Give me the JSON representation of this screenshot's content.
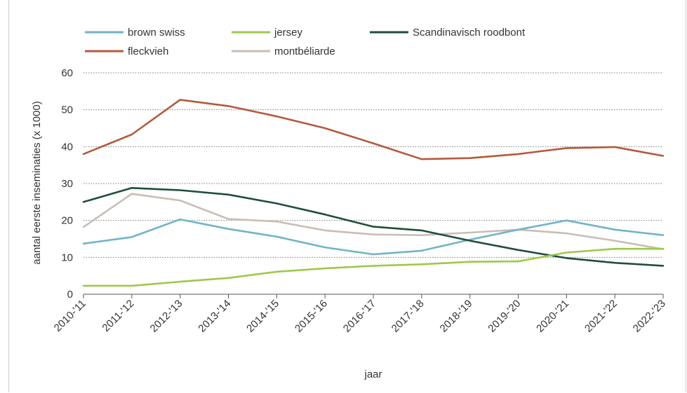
{
  "chart_data": {
    "type": "line",
    "title": "",
    "xlabel": "jaar",
    "ylabel": "aantal eerste inseminaties (x 1000)",
    "ylim": [
      0,
      60
    ],
    "yticks": [
      0,
      10,
      20,
      30,
      40,
      50,
      60
    ],
    "grid": "horizontal dotted",
    "legend_position": "top",
    "categories": [
      "2010-'11",
      "2011-'12",
      "2012-'13",
      "2013-'14",
      "2014-'15",
      "2015-'16",
      "2016-'17",
      "2017-'18",
      "2018-'19",
      "2019-'20",
      "2020-'21",
      "2021-'22",
      "2022-'23"
    ],
    "series": [
      {
        "name": "brown swiss",
        "color": "#72b3c9",
        "values": [
          13.7,
          15.5,
          20.3,
          17.7,
          15.6,
          12.7,
          10.8,
          11.8,
          14.8,
          17.5,
          20.0,
          17.5,
          16.0
        ]
      },
      {
        "name": "jersey",
        "color": "#9cc94a",
        "values": [
          2.3,
          2.3,
          3.4,
          4.4,
          6.1,
          7.0,
          7.7,
          8.1,
          8.8,
          8.9,
          11.3,
          12.3,
          12.3
        ]
      },
      {
        "name": "Scandinavisch roodbont",
        "color": "#1f4e3d",
        "values": [
          25.0,
          28.8,
          28.2,
          27.0,
          24.6,
          21.6,
          18.3,
          17.3,
          14.5,
          12.0,
          9.8,
          8.5,
          7.7
        ]
      },
      {
        "name": "fleckvieh",
        "color": "#b35a3c",
        "values": [
          38.0,
          43.3,
          52.7,
          51.0,
          48.2,
          45.0,
          40.9,
          36.6,
          36.9,
          38.0,
          39.6,
          39.9,
          37.5
        ]
      },
      {
        "name": "montbéliarde",
        "color": "#c8beb5",
        "values": [
          18.2,
          27.2,
          25.4,
          20.4,
          19.7,
          17.3,
          16.2,
          16.0,
          16.7,
          17.5,
          16.5,
          14.5,
          12.2
        ]
      }
    ]
  }
}
